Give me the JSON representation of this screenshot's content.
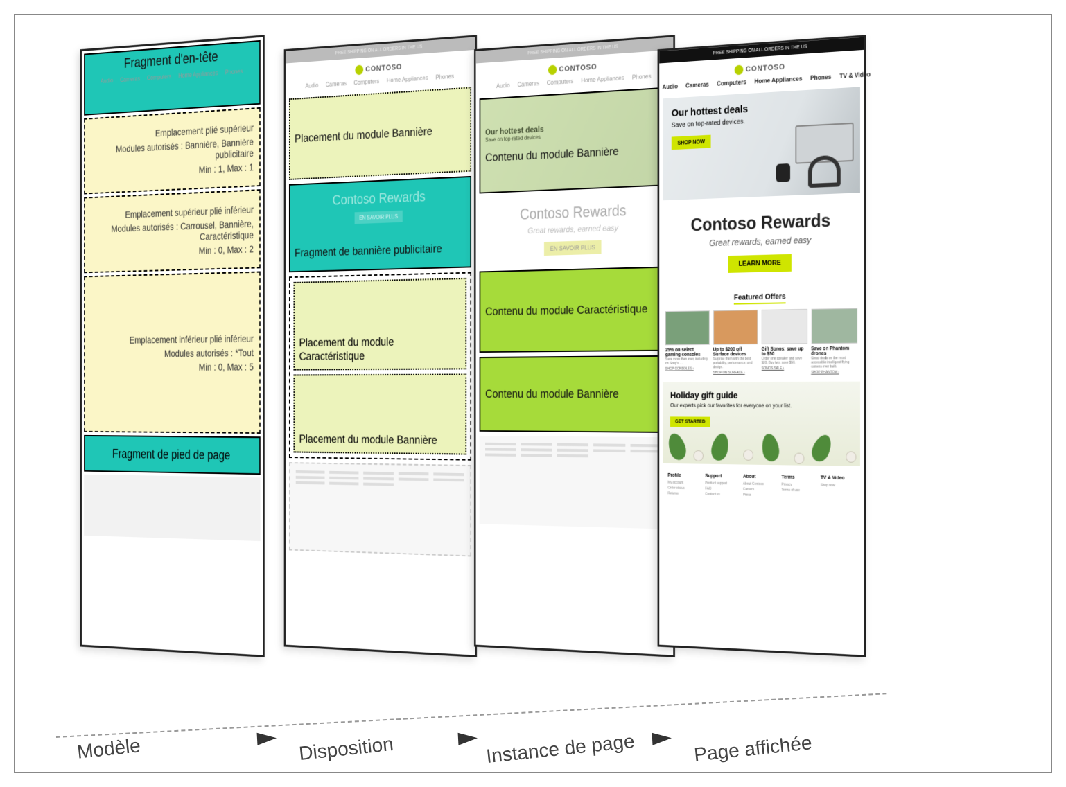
{
  "colors": {
    "teal": "#1fc6b6",
    "pale_yellow": "#fbf6c7",
    "pale_green": "#ecf3bb",
    "bright_green": "#a6db3a",
    "accent_lime": "#cfe500",
    "dark": "#111111",
    "grey_text": "#444444"
  },
  "labels": {
    "stage1": "Modèle",
    "stage2": "Disposition",
    "stage3": "Instance de page",
    "stage4": "Page affichée"
  },
  "common": {
    "topbar": "FREE SHIPPING ON ALL ORDERS IN THE US",
    "brand": "CONTOSO",
    "nav": [
      "Audio",
      "Cameras",
      "Computers",
      "Home Appliances",
      "Phones",
      "TV & Video"
    ]
  },
  "panel1": {
    "header_fragment": "Fragment d'en-tête",
    "slot_top": {
      "line1": "Emplacement plié supérieur",
      "line2": "Modules autorisés : Bannière, Bannière publicitaire",
      "line3": "Min : 1, Max : 1"
    },
    "slot_mid": {
      "line1": "Emplacement supérieur plié inférieur",
      "line2": "Modules autorisés : Carrousel, Bannière, Caractéristique",
      "line3": "Min : 0, Max : 2"
    },
    "slot_bot": {
      "line1": "Emplacement inférieur plié inférieur",
      "line2": "Modules autorisés : *Tout",
      "line3": "Min : 0, Max : 5"
    },
    "footer_fragment": "Fragment de pied de page"
  },
  "panel2": {
    "banner_placement": "Placement du module Bannière",
    "ad_fragment_ghost_title": "Contoso Rewards",
    "ad_fragment_label": "Fragment de bannière publicitaire",
    "ad_fragment_button": "EN SAVOIR PLUS",
    "feature_placement": "Placement du module Caractéristique",
    "banner2_placement": "Placement du module Bannière"
  },
  "panel3": {
    "banner_content": "Contenu du module Bannière",
    "hero_small_title": "Our hottest deals",
    "hero_small_sub": "Save on top-rated devices",
    "rewards_title": "Contoso Rewards",
    "rewards_sub": "Great rewards, earned easy",
    "rewards_button": "EN SAVOIR PLUS",
    "feature_content": "Contenu du module Caractéristique",
    "banner2_content": "Contenu du module Bannière"
  },
  "panel4": {
    "hero": {
      "title": "Our hottest deals",
      "sub": "Save on top-rated devices.",
      "button": "SHOP NOW"
    },
    "rewards": {
      "title": "Contoso Rewards",
      "sub": "Great rewards, earned easy",
      "button": "LEARN MORE"
    },
    "featured_title": "Featured Offers",
    "offers": [
      {
        "title": "25% on select gaming consoles",
        "desc": "Save more than ever, including on Sony's …",
        "link": "SHOP CONSOLES"
      },
      {
        "title": "Up to $200 off Surface devices",
        "desc": "Surprise them with the best portability, performance, and design.",
        "link": "SHOP ON SURFACE"
      },
      {
        "title": "Gift Sonos: save up to $50",
        "desc": "Order one speaker and save $20. Buy two, save $50.",
        "link": "SONOS SALE"
      },
      {
        "title": "Save on Phantom drones",
        "desc": "Great deals on the most accessible intelligent flying camera ever built.",
        "link": "SHOP PHANTOM"
      }
    ],
    "guide": {
      "title": "Holiday gift guide",
      "sub": "Our experts pick our favorites for everyone on your list.",
      "button": "GET STARTED"
    },
    "footer_cols": [
      {
        "head": "Profile",
        "items": [
          "My account",
          "Order status",
          "Returns"
        ]
      },
      {
        "head": "Support",
        "items": [
          "Product support",
          "FAQ",
          "Contact us"
        ]
      },
      {
        "head": "About",
        "items": [
          "About Contoso",
          "Careers",
          "Press"
        ]
      },
      {
        "head": "Terms",
        "items": [
          "Privacy",
          "Terms of use"
        ]
      },
      {
        "head": "TV & Video",
        "items": [
          "Shop now"
        ]
      }
    ]
  }
}
